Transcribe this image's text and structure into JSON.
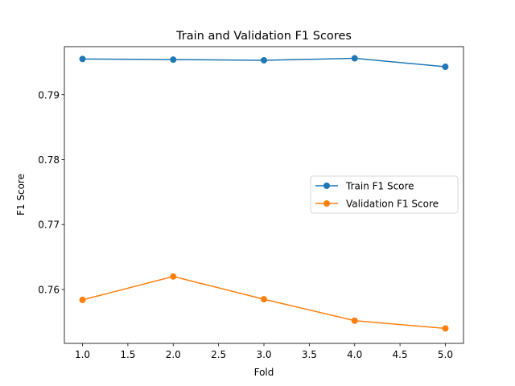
{
  "chart_data": {
    "type": "line",
    "title": "Train and Validation F1 Scores",
    "xlabel": "Fold",
    "ylabel": "F1 Score",
    "x": [
      1,
      2,
      3,
      4,
      5
    ],
    "xlim": [
      0.8,
      5.2
    ],
    "ylim": [
      0.7517,
      0.7974
    ],
    "xticks": [
      1.0,
      1.5,
      2.0,
      2.5,
      3.0,
      3.5,
      4.0,
      4.5,
      5.0
    ],
    "xtick_labels": [
      "1.0",
      "1.5",
      "2.0",
      "2.5",
      "3.0",
      "3.5",
      "4.0",
      "4.5",
      "5.0"
    ],
    "yticks": [
      0.76,
      0.77,
      0.78,
      0.79
    ],
    "ytick_labels": [
      "0.76",
      "0.77",
      "0.78",
      "0.79"
    ],
    "grid": false,
    "legend_position": "center-right",
    "series": [
      {
        "name": "Train F1 Score",
        "color": "#1f77b4",
        "values": [
          0.7955,
          0.7954,
          0.7953,
          0.7956,
          0.7943
        ]
      },
      {
        "name": "Validation F1 Score",
        "color": "#ff7f0e",
        "values": [
          0.7584,
          0.762,
          0.7585,
          0.7552,
          0.754
        ]
      }
    ]
  }
}
